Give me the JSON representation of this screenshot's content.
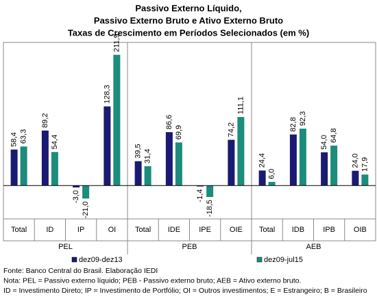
{
  "chart_data": {
    "type": "bar",
    "title": [
      "Passivo Externo Líquido,",
      "Passivo Externo Bruto e Ativo Externo Bruto",
      "Taxas de Crescimento em Períodos Selecionados (em %)"
    ],
    "groups": [
      "PEL",
      "PEB",
      "AEB"
    ],
    "categories": [
      "Total",
      "ID",
      "IP",
      "OI",
      "Total",
      "IDE",
      "IPE",
      "OIE",
      "Total",
      "IDB",
      "IPB",
      "OIB"
    ],
    "series": [
      {
        "name": "dez09-dez13",
        "color": "#1a1a72",
        "values": [
          58.4,
          89.2,
          -3.0,
          128.3,
          39.5,
          86.6,
          -1.4,
          74.2,
          24.4,
          82.8,
          54.0,
          24.0
        ],
        "value_labels": [
          "58,4",
          "89,2",
          "-3,0",
          "128,3",
          "39,5",
          "86,6",
          "-1,4",
          "74,2",
          "24,4",
          "82,8",
          "54,0",
          "24,0"
        ]
      },
      {
        "name": "dez09-jul15",
        "color": "#1c8c7c",
        "values": [
          63.3,
          54.4,
          -21.0,
          211.9,
          31.4,
          69.9,
          -18.5,
          111.1,
          6.0,
          92.3,
          64.8,
          17.9
        ],
        "value_labels": [
          "63,3",
          "54,4",
          "-21,0",
          "211,9",
          "31,4",
          "69,9",
          "-18,5",
          "111,1",
          "6,0",
          "92,3",
          "64,8",
          "17,9"
        ]
      }
    ],
    "ylim": [
      -54,
      232
    ],
    "legend": "bottom",
    "notes": [
      "Fonte: Banco Central do Brasil. Elaboração IEDI",
      "Nota: PEL = Passivo externo líquido; PEB - Passivo externo bruto; AEB = Ativo externo bruto.",
      "ID = Investimento Direto; IP = Investimento de Portfólio; OI = Outros investimentos; E = Estrangeiro; B = Brasileiro"
    ]
  }
}
